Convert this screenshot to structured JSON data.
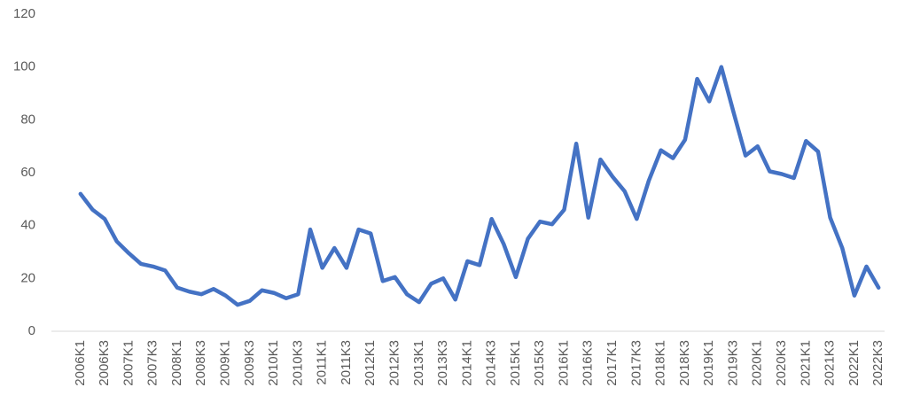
{
  "chart_data": {
    "type": "line",
    "categories": [
      "2006K1",
      null,
      "2006K3",
      null,
      "2007K1",
      null,
      "2007K3",
      null,
      "2008K1",
      null,
      "2008K3",
      null,
      "2009K1",
      null,
      "2009K3",
      null,
      "2010K1",
      null,
      "2010K3",
      null,
      "2011K1",
      null,
      "2011K3",
      null,
      "2012K1",
      null,
      "2012K3",
      null,
      "2013K1",
      null,
      "2013K3",
      null,
      "2014K1",
      null,
      "2014K3",
      null,
      "2015K1",
      null,
      "2015K3",
      null,
      "2016K1",
      null,
      "2016K3",
      null,
      "2017K1",
      null,
      "2017K3",
      null,
      "2018K1",
      null,
      "2018K3",
      null,
      "2019K1",
      null,
      "2019K3",
      null,
      "2020K1",
      null,
      "2020K3",
      null,
      "2021K1",
      null,
      "2021K3",
      null,
      "2022K1",
      null,
      "2022K3"
    ],
    "values": [
      52,
      46,
      42.5,
      34,
      29.5,
      25.5,
      24.5,
      23,
      16.5,
      15,
      14,
      16,
      13.5,
      10,
      11.5,
      15.5,
      14.5,
      12.5,
      14,
      38.5,
      24,
      31.5,
      24,
      38.5,
      37,
      19,
      20.5,
      14,
      11,
      18,
      20,
      12,
      26.5,
      25,
      42.5,
      33,
      20.5,
      35,
      41.5,
      40.5,
      46,
      71,
      43,
      65,
      58.5,
      53,
      42.5,
      57,
      68.5,
      65.5,
      72.5,
      95.5,
      87,
      100,
      83,
      66.5,
      70,
      60.5,
      59.5,
      58,
      72,
      68,
      43,
      31.5,
      13.5,
      24.5,
      16.5
    ],
    "color": "#4472c4",
    "ylim": [
      0,
      120
    ],
    "yticks": [
      0,
      20,
      40,
      60,
      80,
      100,
      120
    ],
    "grid": false
  }
}
